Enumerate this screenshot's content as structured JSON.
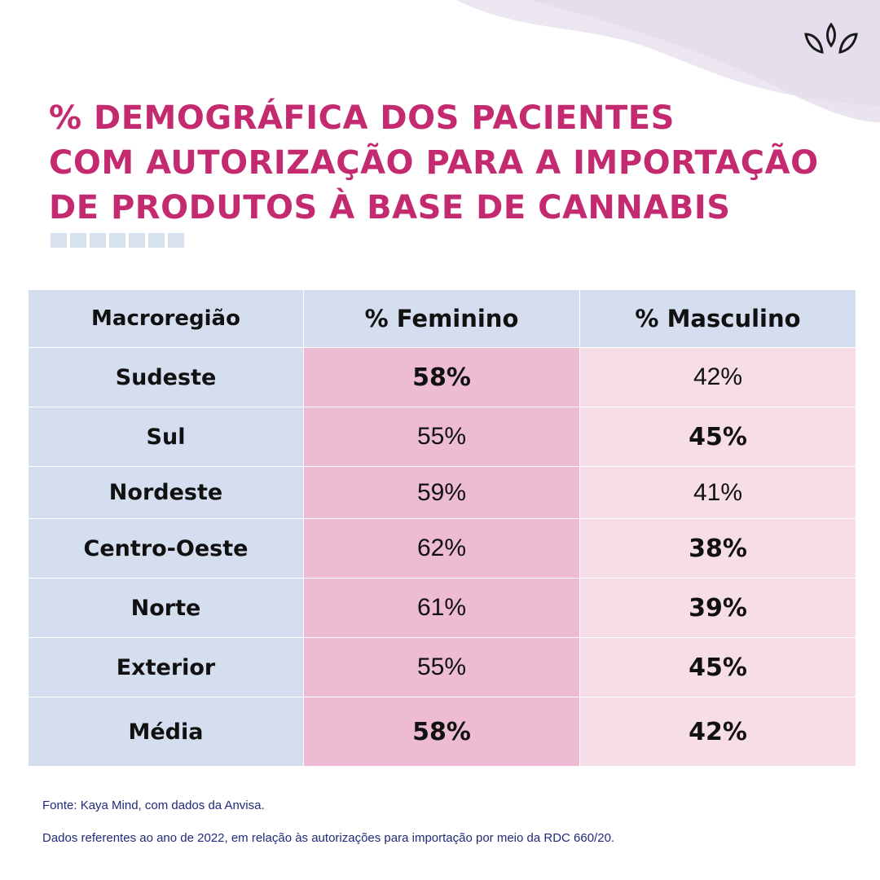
{
  "title": {
    "line1": "% DEMOGRÁFICA DOS PACIENTES",
    "line2": "COM AUTORIZAÇÃO PARA A IMPORTAÇÃO",
    "line3": "DE PRODUTOS À BASE DE CANNABIS"
  },
  "icons": {
    "logo": "leaf-sprout-icon"
  },
  "colors": {
    "title": "#c42a6f",
    "header_bg": "#d4deee",
    "feminino_bg": "#eebcd2",
    "masculino_bg": "#f7dde7",
    "footnote": "#1f2b7a"
  },
  "table": {
    "headers": [
      "Macroregião",
      "% Feminino",
      "% Masculino"
    ],
    "rows": [
      {
        "region": "Sudeste",
        "feminino": "58%",
        "masculino": "42%"
      },
      {
        "region": "Sul",
        "feminino": "55%",
        "masculino": "45%"
      },
      {
        "region": "Nordeste",
        "feminino": "59%",
        "masculino": "41%"
      },
      {
        "region": "Centro-Oeste",
        "feminino": "62%",
        "masculino": "38%"
      },
      {
        "region": "Norte",
        "feminino": "61%",
        "masculino": "39%"
      },
      {
        "region": "Exterior",
        "feminino": "55%",
        "masculino": "45%"
      }
    ],
    "average": {
      "region": "Média",
      "feminino": "58%",
      "masculino": "42%"
    }
  },
  "footnotes": {
    "source": "Fonte: Kaya Mind, com dados da Anvisa.",
    "note": "Dados referentes ao ano de 2022, em relação às autorizações para importação por meio da RDC 660/20."
  }
}
